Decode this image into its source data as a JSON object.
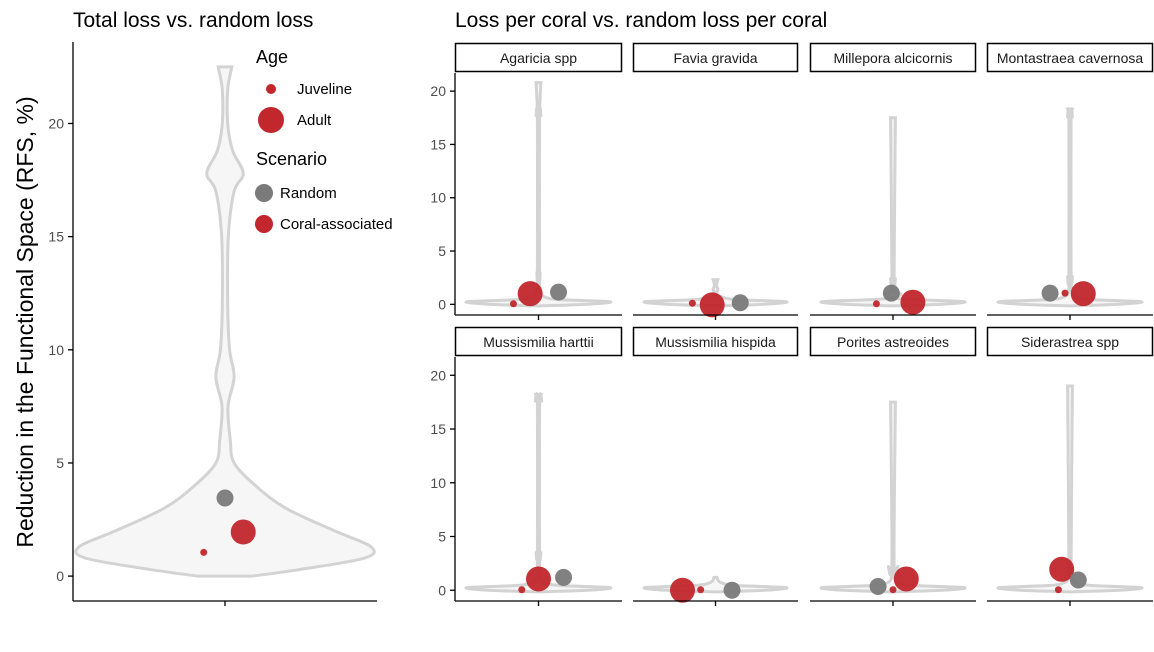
{
  "colors": {
    "random": "#7a7a7a",
    "coral": "#c1272d",
    "violin_stroke": "#d3d3d3",
    "violin_fill": "#f6f6f6",
    "axis": "#000000",
    "tick_label": "#4d4d4d"
  },
  "chart_data": [
    {
      "type": "violin",
      "title": "Total loss vs. random loss",
      "ylabel": "Reduction in the Functional Space (RFS, %)",
      "xlabel": "",
      "ylim": [
        -1.1,
        23.6
      ],
      "yticks": [
        0,
        5,
        10,
        15,
        20
      ],
      "violin_profile": [
        {
          "y": 0.0,
          "w": 0.18
        },
        {
          "y": 0.3,
          "w": 0.5
        },
        {
          "y": 0.8,
          "w": 0.92
        },
        {
          "y": 1.3,
          "w": 0.96
        },
        {
          "y": 2.0,
          "w": 0.72
        },
        {
          "y": 3.0,
          "w": 0.4
        },
        {
          "y": 4.0,
          "w": 0.2
        },
        {
          "y": 5.0,
          "w": 0.06
        },
        {
          "y": 6.0,
          "w": 0.035
        },
        {
          "y": 7.5,
          "w": 0.02
        },
        {
          "y": 8.8,
          "w": 0.06
        },
        {
          "y": 10.0,
          "w": 0.03
        },
        {
          "y": 12.0,
          "w": 0.018
        },
        {
          "y": 15.0,
          "w": 0.022
        },
        {
          "y": 17.0,
          "w": 0.06
        },
        {
          "y": 17.8,
          "w": 0.12
        },
        {
          "y": 18.8,
          "w": 0.05
        },
        {
          "y": 20.0,
          "w": 0.018
        },
        {
          "y": 21.5,
          "w": 0.018
        },
        {
          "y": 22.5,
          "w": 0.045
        }
      ],
      "points": [
        {
          "scenario": "Random",
          "age": "Adult",
          "y": 3.45,
          "dx": 0.0
        },
        {
          "scenario": "Coral-associated",
          "age": "Adult",
          "y": 1.95,
          "dx": 0.06
        },
        {
          "scenario": "Coral-associated",
          "age": "Juveline",
          "y": 1.05,
          "dx": -0.07
        }
      ]
    },
    {
      "type": "violin",
      "title": "Loss per coral vs. random loss per coral",
      "ylim": [
        -1.0,
        21.7
      ],
      "yticks": [
        0,
        5,
        10,
        15,
        20
      ],
      "panels": [
        {
          "name": "Agaricia spp",
          "top": 20.8,
          "bulges": [
            {
              "y": 17.7,
              "w": 0.03
            },
            {
              "y": 3.0,
              "w": 0.02
            }
          ],
          "points": [
            {
              "scenario": "Coral-associated",
              "age": "Juveline",
              "y": 0.05,
              "dx": -0.15
            },
            {
              "scenario": "Coral-associated",
              "age": "Adult",
              "y": 1.0,
              "dx": -0.05
            },
            {
              "scenario": "Random",
              "age": "Adult",
              "y": 1.15,
              "dx": 0.12
            }
          ]
        },
        {
          "name": "Favia gravida",
          "top": 2.3,
          "bulges": [
            {
              "y": 1.4,
              "w": 0.03
            }
          ],
          "points": [
            {
              "scenario": "Coral-associated",
              "age": "Juveline",
              "y": 0.1,
              "dx": -0.14
            },
            {
              "scenario": "Coral-associated",
              "age": "Adult",
              "y": -0.05,
              "dx": -0.02
            },
            {
              "scenario": "Random",
              "age": "Adult",
              "y": 0.15,
              "dx": 0.15
            }
          ]
        },
        {
          "name": "Millepora alcicornis",
          "top": 17.5,
          "bulges": [
            {
              "y": 2.4,
              "w": 0.03
            },
            {
              "y": 1.0,
              "w": 0.1
            }
          ],
          "points": [
            {
              "scenario": "Coral-associated",
              "age": "Juveline",
              "y": 0.05,
              "dx": -0.1
            },
            {
              "scenario": "Random",
              "age": "Adult",
              "y": 1.05,
              "dx": -0.01
            },
            {
              "scenario": "Coral-associated",
              "age": "Adult",
              "y": 0.2,
              "dx": 0.12
            }
          ]
        },
        {
          "name": "Montastraea cavernosa",
          "top": 18.3,
          "bulges": [
            {
              "y": 17.6,
              "w": 0.03
            },
            {
              "y": 2.6,
              "w": 0.03
            }
          ],
          "points": [
            {
              "scenario": "Random",
              "age": "Adult",
              "y": 1.05,
              "dx": -0.12
            },
            {
              "scenario": "Coral-associated",
              "age": "Juveline",
              "y": 1.05,
              "dx": -0.03
            },
            {
              "scenario": "Coral-associated",
              "age": "Adult",
              "y": 1.0,
              "dx": 0.08
            }
          ]
        },
        {
          "name": "Mussismilia harttii",
          "top": 18.2,
          "bulges": [
            {
              "y": 17.6,
              "w": 0.04
            },
            {
              "y": 3.5,
              "w": 0.03
            }
          ],
          "points": [
            {
              "scenario": "Coral-associated",
              "age": "Juveline",
              "y": 0.05,
              "dx": -0.1
            },
            {
              "scenario": "Coral-associated",
              "age": "Adult",
              "y": 1.05,
              "dx": 0.0
            },
            {
              "scenario": "Random",
              "age": "Adult",
              "y": 1.2,
              "dx": 0.15
            }
          ]
        },
        {
          "name": "Mussismilia hispida",
          "top": 0.0,
          "bulges": [],
          "points": [
            {
              "scenario": "Coral-associated",
              "age": "Adult",
              "y": 0.0,
              "dx": -0.2
            },
            {
              "scenario": "Coral-associated",
              "age": "Juveline",
              "y": 0.05,
              "dx": -0.09
            },
            {
              "scenario": "Random",
              "age": "Adult",
              "y": 0.0,
              "dx": 0.1
            }
          ]
        },
        {
          "name": "Porites astreoides",
          "top": 17.5,
          "bulges": [
            {
              "y": 2.2,
              "w": 0.06
            }
          ],
          "points": [
            {
              "scenario": "Random",
              "age": "Adult",
              "y": 0.35,
              "dx": -0.09
            },
            {
              "scenario": "Coral-associated",
              "age": "Juveline",
              "y": 0.05,
              "dx": 0.0
            },
            {
              "scenario": "Coral-associated",
              "age": "Adult",
              "y": 1.05,
              "dx": 0.08
            }
          ]
        },
        {
          "name": "Siderastrea spp",
          "top": 19.0,
          "bulges": [
            {
              "y": 2.0,
              "w": 0.03
            }
          ],
          "points": [
            {
              "scenario": "Coral-associated",
              "age": "Juveline",
              "y": 0.05,
              "dx": -0.07
            },
            {
              "scenario": "Coral-associated",
              "age": "Adult",
              "y": 1.95,
              "dx": -0.05
            },
            {
              "scenario": "Random",
              "age": "Adult",
              "y": 0.95,
              "dx": 0.05
            }
          ]
        }
      ]
    }
  ],
  "legend": {
    "age_title": "Age",
    "age_items": [
      {
        "label": "Juveline",
        "size": "small",
        "color": "#c1272d"
      },
      {
        "label": "Adult",
        "size": "large",
        "color": "#c1272d"
      }
    ],
    "scenario_title": "Scenario",
    "scenario_items": [
      {
        "label": "Random",
        "color": "#7a7a7a"
      },
      {
        "label": "Coral-associated",
        "color": "#c1272d"
      }
    ]
  }
}
